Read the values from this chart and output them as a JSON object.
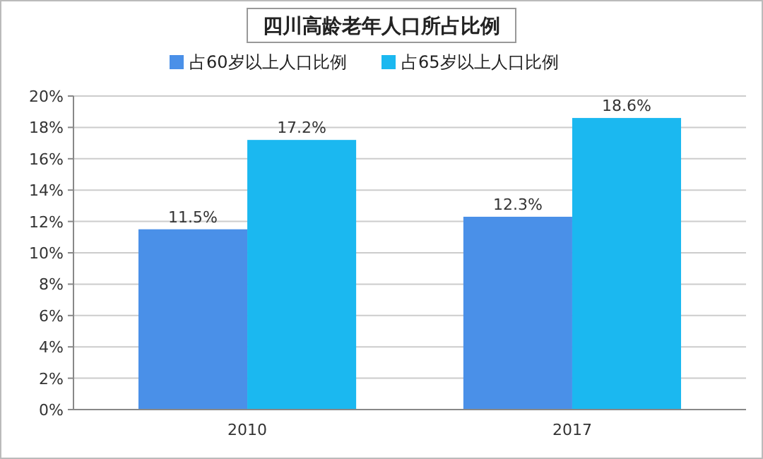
{
  "chart_data": {
    "type": "bar",
    "title": "四川高龄老年人口所占比例",
    "categories": [
      "2010",
      "2017"
    ],
    "series": [
      {
        "name": "占60岁以上人口比例",
        "color": "#4a90e8",
        "values": [
          11.5,
          12.3
        ],
        "value_labels": [
          "11.5%",
          "12.3%"
        ]
      },
      {
        "name": "占65岁以上人口比例",
        "color": "#1bb8f0",
        "values": [
          17.2,
          18.6
        ],
        "value_labels": [
          "17.2%",
          "18.6%"
        ]
      }
    ],
    "ylim": [
      0,
      20
    ],
    "yticks": [
      {
        "value": 0,
        "label": "0%"
      },
      {
        "value": 2,
        "label": "2%"
      },
      {
        "value": 4,
        "label": "4%"
      },
      {
        "value": 6,
        "label": "6%"
      },
      {
        "value": 8,
        "label": "8%"
      },
      {
        "value": 10,
        "label": "10%"
      },
      {
        "value": 12,
        "label": "12%"
      },
      {
        "value": 14,
        "label": "14%"
      },
      {
        "value": 16,
        "label": "16%"
      },
      {
        "value": 18,
        "label": "18%"
      },
      {
        "value": 20,
        "label": "20%"
      }
    ],
    "grid": "y",
    "legend": "top"
  }
}
